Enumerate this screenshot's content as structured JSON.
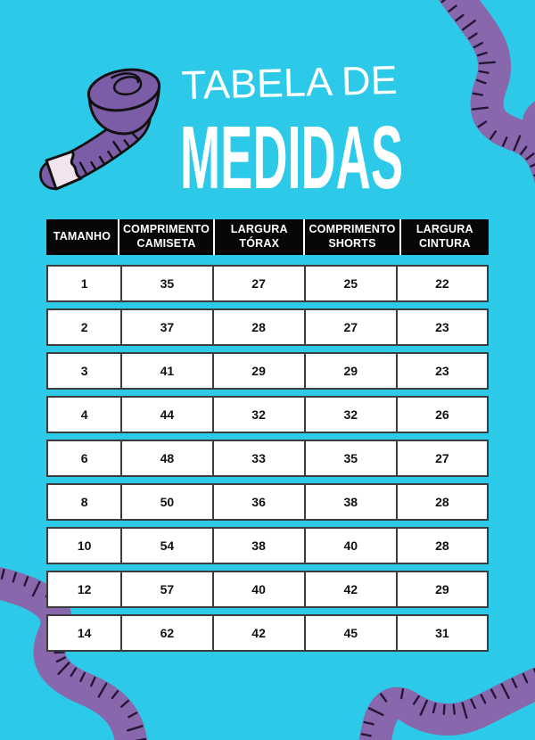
{
  "title": {
    "line1": "TABELA DE",
    "line2": "MEDIDAS"
  },
  "table": {
    "headers": [
      "TAMANHO",
      "COMPRIMENTO CAMISETA",
      "LARGURA TÓRAX",
      "COMPRIMENTO SHORTS",
      "LARGURA CINTURA"
    ],
    "rows": [
      [
        "1",
        "35",
        "27",
        "25",
        "22"
      ],
      [
        "2",
        "37",
        "28",
        "27",
        "23"
      ],
      [
        "3",
        "41",
        "29",
        "29",
        "23"
      ],
      [
        "4",
        "44",
        "32",
        "32",
        "26"
      ],
      [
        "6",
        "48",
        "33",
        "35",
        "27"
      ],
      [
        "8",
        "50",
        "36",
        "38",
        "28"
      ],
      [
        "10",
        "54",
        "38",
        "40",
        "28"
      ],
      [
        "12",
        "57",
        "40",
        "42",
        "29"
      ],
      [
        "14",
        "62",
        "42",
        "45",
        "31"
      ]
    ]
  },
  "decorations": {
    "top_left": "measuring-tape-roll-icon",
    "top_right": "tape-ribbon",
    "bottom_left": "tape-ribbon",
    "bottom_right": "tape-ribbon"
  },
  "colors": {
    "background": "#2cc9e8",
    "header_bg": "#070707",
    "header_text": "#ffffff",
    "cell_bg": "#ffffff",
    "cell_border": "#3c3c3c",
    "cell_text": "#111111",
    "ribbon_purple": "#8967ac",
    "roll_purple": "#7b5ca7",
    "tape_tip": "#f2e4ed",
    "tick_dark": "#241736",
    "title_text": "#ffffff"
  }
}
